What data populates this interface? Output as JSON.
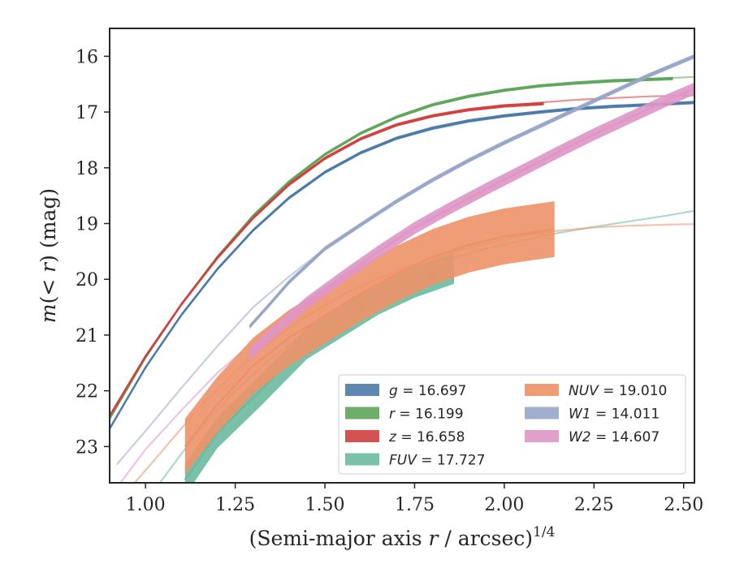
{
  "chart_data": {
    "type": "line",
    "title": "",
    "xlabel_main": "(Semi-major axis ",
    "xlabel_var": "r",
    "xlabel_rest": " / arcsec)",
    "xlabel_sup": "1/4",
    "ylabel_main": "m",
    "ylabel_paren": "(< ",
    "ylabel_var": "r",
    "ylabel_rest": ") (mag)",
    "xlim": [
      0.9,
      2.53
    ],
    "ylim": [
      23.65,
      15.5
    ],
    "y_inverted": true,
    "grid": false,
    "legend_position": "lower-right",
    "x_ticks": [
      1.0,
      1.25,
      1.5,
      1.75,
      2.0,
      2.25,
      2.5
    ],
    "x_tick_labels": [
      "1.00",
      "1.25",
      "1.50",
      "1.75",
      "2.00",
      "2.25",
      "2.50"
    ],
    "y_ticks": [
      16,
      17,
      18,
      19,
      20,
      21,
      22,
      23
    ],
    "y_tick_labels": [
      "16",
      "17",
      "18",
      "19",
      "20",
      "21",
      "22",
      "23"
    ],
    "series": [
      {
        "name": "g = 16.697",
        "sym": "g",
        "val": "16.697",
        "color": "#4c7aa8",
        "model": [
          [
            0.9,
            22.68
          ],
          [
            1.0,
            21.58
          ],
          [
            1.1,
            20.64
          ],
          [
            1.2,
            19.82
          ],
          [
            1.3,
            19.12
          ],
          [
            1.4,
            18.54
          ],
          [
            1.5,
            18.08
          ],
          [
            1.6,
            17.73
          ],
          [
            1.7,
            17.47
          ],
          [
            1.8,
            17.29
          ],
          [
            1.9,
            17.16
          ],
          [
            2.0,
            17.07
          ],
          [
            2.1,
            17.0
          ],
          [
            2.2,
            16.94
          ],
          [
            2.3,
            16.9
          ],
          [
            2.4,
            16.87
          ],
          [
            2.53,
            16.83
          ]
        ],
        "measured": [
          [
            0.9,
            22.68
          ],
          [
            1.0,
            21.58
          ],
          [
            1.1,
            20.64
          ],
          [
            1.2,
            19.82
          ],
          [
            1.3,
            19.12
          ],
          [
            1.4,
            18.54
          ],
          [
            1.5,
            18.08
          ],
          [
            1.6,
            17.73
          ],
          [
            1.7,
            17.47
          ],
          [
            1.8,
            17.29
          ],
          [
            1.9,
            17.16
          ],
          [
            2.0,
            17.07
          ],
          [
            2.1,
            17.0
          ],
          [
            2.2,
            16.94
          ],
          [
            2.3,
            16.9
          ],
          [
            2.4,
            16.87
          ],
          [
            2.53,
            16.83
          ]
        ],
        "band": 0.03
      },
      {
        "name": "r = 16.199",
        "sym": "r",
        "val": "16.199",
        "color": "#5fa55a",
        "model": [
          [
            0.9,
            22.5
          ],
          [
            1.0,
            21.4
          ],
          [
            1.1,
            20.45
          ],
          [
            1.2,
            19.6
          ],
          [
            1.3,
            18.86
          ],
          [
            1.4,
            18.25
          ],
          [
            1.5,
            17.76
          ],
          [
            1.6,
            17.38
          ],
          [
            1.7,
            17.09
          ],
          [
            1.8,
            16.87
          ],
          [
            1.9,
            16.72
          ],
          [
            2.0,
            16.61
          ],
          [
            2.1,
            16.53
          ],
          [
            2.2,
            16.48
          ],
          [
            2.3,
            16.44
          ],
          [
            2.4,
            16.41
          ],
          [
            2.53,
            16.37
          ]
        ],
        "measured": [
          [
            0.9,
            22.5
          ],
          [
            1.0,
            21.4
          ],
          [
            1.1,
            20.45
          ],
          [
            1.2,
            19.6
          ],
          [
            1.3,
            18.86
          ],
          [
            1.4,
            18.25
          ],
          [
            1.5,
            17.76
          ],
          [
            1.6,
            17.38
          ],
          [
            1.7,
            17.09
          ],
          [
            1.8,
            16.87
          ],
          [
            1.9,
            16.72
          ],
          [
            2.0,
            16.61
          ],
          [
            2.1,
            16.53
          ],
          [
            2.2,
            16.48
          ],
          [
            2.3,
            16.44
          ],
          [
            2.47,
            16.4
          ]
        ],
        "band": 0.03
      },
      {
        "name": "z = 16.658",
        "sym": "z",
        "val": "16.658",
        "color": "#d23f3f",
        "model": [
          [
            0.9,
            22.45
          ],
          [
            1.0,
            21.38
          ],
          [
            1.1,
            20.45
          ],
          [
            1.2,
            19.62
          ],
          [
            1.3,
            18.9
          ],
          [
            1.4,
            18.3
          ],
          [
            1.5,
            17.83
          ],
          [
            1.6,
            17.48
          ],
          [
            1.7,
            17.23
          ],
          [
            1.8,
            17.07
          ],
          [
            1.9,
            16.96
          ],
          [
            2.0,
            16.89
          ],
          [
            2.1,
            16.83
          ],
          [
            2.2,
            16.78
          ],
          [
            2.3,
            16.75
          ],
          [
            2.4,
            16.72
          ],
          [
            2.53,
            16.7
          ]
        ],
        "measured": [
          [
            0.9,
            22.45
          ],
          [
            1.0,
            21.38
          ],
          [
            1.1,
            20.45
          ],
          [
            1.2,
            19.62
          ],
          [
            1.3,
            18.9
          ],
          [
            1.4,
            18.3
          ],
          [
            1.5,
            17.83
          ],
          [
            1.6,
            17.48
          ],
          [
            1.7,
            17.23
          ],
          [
            1.8,
            17.07
          ],
          [
            1.9,
            16.96
          ],
          [
            2.0,
            16.89
          ],
          [
            2.11,
            16.85
          ]
        ],
        "band": 0.03
      },
      {
        "name": "FUV = 17.727",
        "sym": "FUV",
        "val": "17.727",
        "color": "#6cbaa0",
        "model": [
          [
            1.04,
            23.65
          ],
          [
            1.15,
            22.7
          ],
          [
            1.25,
            22.0
          ],
          [
            1.35,
            21.42
          ],
          [
            1.45,
            20.92
          ],
          [
            1.55,
            20.5
          ],
          [
            1.65,
            20.15
          ],
          [
            1.75,
            19.86
          ],
          [
            1.85,
            19.63
          ],
          [
            1.95,
            19.45
          ],
          [
            2.05,
            19.3
          ],
          [
            2.15,
            19.17
          ],
          [
            2.25,
            19.06
          ],
          [
            2.35,
            18.96
          ],
          [
            2.45,
            18.86
          ],
          [
            2.53,
            18.77
          ]
        ],
        "measured": [
          [
            1.11,
            23.6
          ],
          [
            1.2,
            22.75
          ],
          [
            1.32,
            22.0
          ],
          [
            1.45,
            21.15
          ],
          [
            1.55,
            20.75
          ],
          [
            1.65,
            20.35
          ],
          [
            1.75,
            20.05
          ],
          [
            1.86,
            19.8
          ]
        ],
        "band": 0.28
      },
      {
        "name": "NUV = 19.010",
        "sym": "NUV",
        "val": "19.010",
        "color": "#ed9268",
        "model": [
          [
            0.97,
            23.65
          ],
          [
            1.05,
            23.05
          ],
          [
            1.15,
            22.3
          ],
          [
            1.25,
            21.65
          ],
          [
            1.35,
            21.1
          ],
          [
            1.45,
            20.65
          ],
          [
            1.55,
            20.28
          ],
          [
            1.65,
            19.98
          ],
          [
            1.75,
            19.73
          ],
          [
            1.85,
            19.52
          ],
          [
            1.95,
            19.35
          ],
          [
            2.05,
            19.22
          ],
          [
            2.15,
            19.13
          ],
          [
            2.25,
            19.07
          ],
          [
            2.35,
            19.04
          ],
          [
            2.45,
            19.02
          ],
          [
            2.53,
            19.01
          ]
        ],
        "measured": [
          [
            1.11,
            23.0
          ],
          [
            1.2,
            22.25
          ],
          [
            1.3,
            21.55
          ],
          [
            1.4,
            21.05
          ],
          [
            1.5,
            20.65
          ],
          [
            1.6,
            20.25
          ],
          [
            1.7,
            19.9
          ],
          [
            1.8,
            19.6
          ],
          [
            1.9,
            19.38
          ],
          [
            2.0,
            19.23
          ],
          [
            2.14,
            19.1
          ]
        ],
        "band": 0.5
      },
      {
        "name": "W1 = 14.011",
        "sym": "W1",
        "val": "14.011",
        "color": "#97a6c6",
        "model": [
          [
            0.92,
            23.32
          ],
          [
            1.0,
            22.72
          ],
          [
            1.1,
            21.95
          ],
          [
            1.2,
            21.2
          ],
          [
            1.3,
            20.5
          ],
          [
            1.4,
            19.95
          ],
          [
            1.5,
            19.45
          ],
          [
            1.6,
            19.02
          ],
          [
            1.7,
            18.6
          ],
          [
            1.8,
            18.22
          ],
          [
            1.9,
            17.87
          ],
          [
            2.0,
            17.55
          ],
          [
            2.1,
            17.25
          ],
          [
            2.2,
            16.95
          ],
          [
            2.3,
            16.65
          ],
          [
            2.4,
            16.35
          ],
          [
            2.53,
            16.0
          ]
        ],
        "measured": [
          [
            1.29,
            20.85
          ],
          [
            1.35,
            20.42
          ],
          [
            1.4,
            20.05
          ],
          [
            1.5,
            19.45
          ],
          [
            1.6,
            19.02
          ],
          [
            1.7,
            18.6
          ],
          [
            1.8,
            18.22
          ],
          [
            1.9,
            17.87
          ],
          [
            2.0,
            17.55
          ],
          [
            2.1,
            17.25
          ],
          [
            2.2,
            16.95
          ],
          [
            2.3,
            16.65
          ],
          [
            2.4,
            16.35
          ],
          [
            2.53,
            16.0
          ]
        ],
        "band": 0.04
      },
      {
        "name": "W2 = 14.607",
        "sym": "W2",
        "val": "14.607",
        "color": "#de96c5",
        "model": [
          [
            0.93,
            23.65
          ],
          [
            1.0,
            23.05
          ],
          [
            1.1,
            22.35
          ],
          [
            1.2,
            21.68
          ],
          [
            1.3,
            21.12
          ],
          [
            1.4,
            20.6
          ],
          [
            1.5,
            20.15
          ],
          [
            1.6,
            19.72
          ],
          [
            1.7,
            19.28
          ],
          [
            1.8,
            18.9
          ],
          [
            1.9,
            18.55
          ],
          [
            2.0,
            18.2
          ],
          [
            2.1,
            17.88
          ],
          [
            2.2,
            17.57
          ],
          [
            2.3,
            17.25
          ],
          [
            2.4,
            16.95
          ],
          [
            2.53,
            16.58
          ]
        ],
        "measured": [
          [
            1.29,
            21.35
          ],
          [
            1.35,
            20.98
          ],
          [
            1.45,
            20.42
          ],
          [
            1.55,
            19.95
          ],
          [
            1.65,
            19.5
          ],
          [
            1.75,
            19.08
          ],
          [
            1.85,
            18.72
          ],
          [
            1.95,
            18.38
          ],
          [
            2.05,
            18.05
          ],
          [
            2.15,
            17.72
          ],
          [
            2.25,
            17.4
          ],
          [
            2.35,
            17.1
          ],
          [
            2.45,
            16.8
          ],
          [
            2.53,
            16.58
          ]
        ],
        "band": 0.11
      }
    ]
  }
}
